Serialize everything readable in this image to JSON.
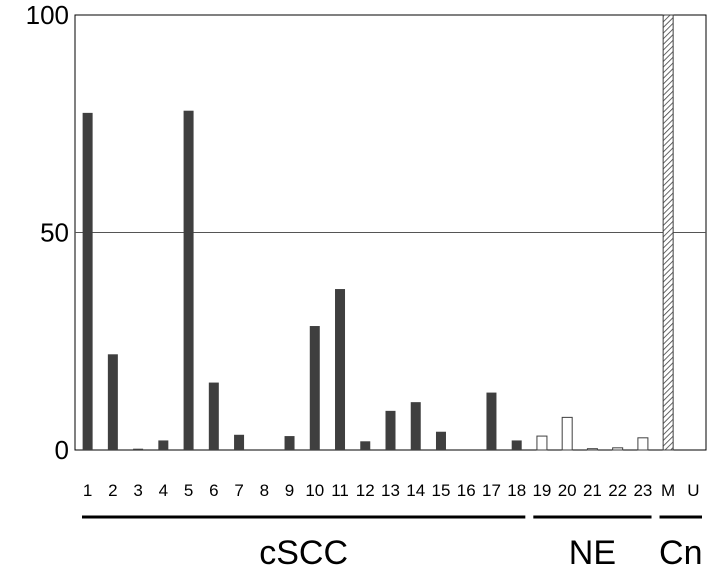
{
  "chart_data": {
    "type": "bar",
    "title": "",
    "xlabel": "",
    "ylabel": "",
    "ylim": [
      0,
      100
    ],
    "yticks": [
      0,
      50,
      100
    ],
    "grid": "horizontal line at 50",
    "categories": [
      "1",
      "2",
      "3",
      "4",
      "5",
      "6",
      "7",
      "8",
      "9",
      "10",
      "11",
      "12",
      "13",
      "14",
      "15",
      "16",
      "17",
      "18",
      "19",
      "20",
      "21",
      "22",
      "23",
      "M",
      "U"
    ],
    "values": [
      77.5,
      22,
      0.3,
      2.2,
      78,
      15.5,
      3.5,
      0,
      3.2,
      28.5,
      37,
      2,
      9,
      11,
      4.2,
      0,
      13.2,
      2.2,
      3.2,
      7.5,
      0.3,
      0.5,
      2.8,
      100,
      0
    ],
    "bar_styles": [
      "solid",
      "solid",
      "solid",
      "solid",
      "solid",
      "solid",
      "solid",
      "solid",
      "solid",
      "solid",
      "solid",
      "solid",
      "solid",
      "solid",
      "solid",
      "solid",
      "solid",
      "solid",
      "open",
      "open",
      "open",
      "open",
      "open",
      "hatched",
      "hatched"
    ],
    "groups": [
      {
        "label": "cSCC",
        "from": 0,
        "to": 17
      },
      {
        "label": "NE",
        "from": 18,
        "to": 22
      },
      {
        "label": "Cn",
        "from": 23,
        "to": 24
      }
    ],
    "colors": {
      "solid": "#3f3f3f",
      "open": "#ffffff",
      "edge": "#3f3f3f",
      "axis": "#000000",
      "grid": "#555555"
    }
  }
}
